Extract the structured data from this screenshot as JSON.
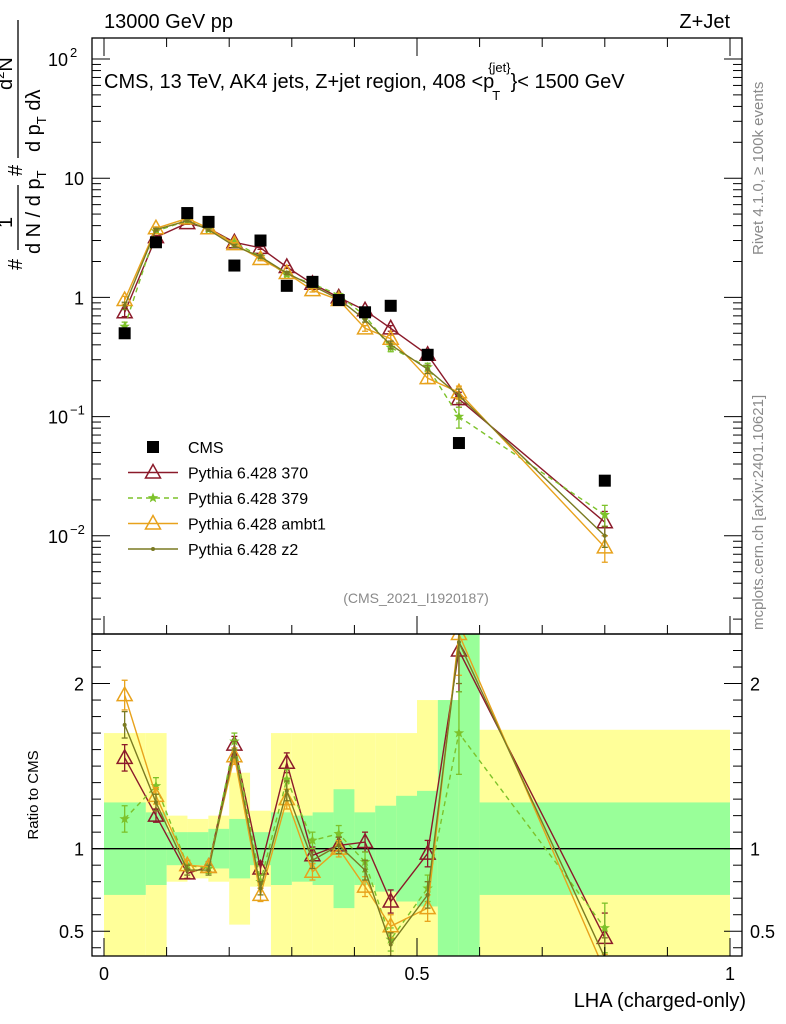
{
  "header": {
    "left": "13000 GeV pp",
    "right": "Z+Jet",
    "subtitle": "CMS, 13 TeV, AK4 jets, Z+jet region, 408 <p",
    "subtitle_sup": "{jet}",
    "subtitle_sub": "T",
    "subtitle_end": "}< 1500 GeV"
  },
  "ylabel_main": {
    "num1": "1",
    "den1": "d N / d p",
    "den1_sub": "T",
    "num2": "d",
    "num2_sup": "2",
    "num2_end": "N",
    "den2": "d p",
    "den2_sub": "T",
    "den2_end": " dλ",
    "hash": "#"
  },
  "side": {
    "rivet": "Rivet 4.1.0, ≥ 100k events",
    "mcplots": "mcplots.cern.ch [arXiv:2401.10621]"
  },
  "analysis_id": "(CMS_2021_I1920187)",
  "ratio_label": "Ratio to CMS",
  "xlabel": "LHA (charged-only)",
  "colors": {
    "cms": "#000000",
    "p370": "#8b1a2a",
    "p379": "#7dc22a",
    "ambt1": "#e8a21c",
    "z2": "#7a7a22",
    "band_inner": "#99ff99",
    "band_outer": "#ffff99"
  },
  "chart_data": {
    "type": "scatter",
    "title": "CMS, 13 TeV, AK4 jets, Z+jet region, 408 <p_T^{jet}< 1500 GeV",
    "xlabel": "LHA (charged-only)",
    "xlim": [
      0,
      1
    ],
    "ylim_main": [
      0.0015,
      150
    ],
    "yscale_main": "log",
    "ylim_ratio": [
      0.35,
      2.3
    ],
    "x_ticks": [
      "0",
      "0.5",
      "1"
    ],
    "x_tick_values": [
      0,
      0.5,
      1
    ],
    "y_ticks_main": [
      {
        "value": 0.01,
        "label": "10",
        "sup": "−2"
      },
      {
        "value": 0.1,
        "label": "10",
        "sup": "−1"
      },
      {
        "value": 1,
        "label": "1",
        "sup": ""
      },
      {
        "value": 10,
        "label": "10",
        "sup": ""
      },
      {
        "value": 100,
        "label": "10",
        "sup": "2"
      }
    ],
    "y_ticks_ratio": [
      {
        "value": 0.5,
        "label": "0.5"
      },
      {
        "value": 1,
        "label": "1"
      },
      {
        "value": 2,
        "label": "2"
      }
    ],
    "legend_position": "lower-left",
    "bins": [
      {
        "x0": 0.0,
        "x1": 0.0667,
        "inner": [
          0.72,
          1.28
        ],
        "outer": [
          0.3,
          1.7
        ]
      },
      {
        "x0": 0.0667,
        "x1": 0.1,
        "inner": [
          0.78,
          1.22
        ],
        "outer": [
          0.3,
          1.7
        ]
      },
      {
        "x0": 0.1,
        "x1": 0.1333,
        "inner": [
          0.9,
          1.1
        ],
        "outer": [
          0.8,
          1.2
        ]
      },
      {
        "x0": 0.1333,
        "x1": 0.1667,
        "inner": [
          0.9,
          1.1
        ],
        "outer": [
          0.82,
          1.18
        ]
      },
      {
        "x0": 0.1667,
        "x1": 0.2,
        "inner": [
          0.88,
          1.12
        ],
        "outer": [
          0.8,
          1.2
        ]
      },
      {
        "x0": 0.2,
        "x1": 0.2333,
        "inner": [
          0.82,
          1.18
        ],
        "outer": [
          0.54,
          1.46
        ]
      },
      {
        "x0": 0.2333,
        "x1": 0.2667,
        "inner": [
          0.9,
          1.1
        ],
        "outer": [
          0.77,
          1.23
        ]
      },
      {
        "x0": 0.2667,
        "x1": 0.3,
        "inner": [
          0.78,
          1.22
        ],
        "outer": [
          0.3,
          1.7
        ]
      },
      {
        "x0": 0.3,
        "x1": 0.3333,
        "inner": [
          0.8,
          1.2
        ],
        "outer": [
          0.3,
          1.7
        ]
      },
      {
        "x0": 0.3333,
        "x1": 0.3667,
        "inner": [
          0.78,
          1.22
        ],
        "outer": [
          0.3,
          1.7
        ]
      },
      {
        "x0": 0.3667,
        "x1": 0.4,
        "inner": [
          0.64,
          1.36
        ],
        "outer": [
          0.3,
          1.7
        ]
      },
      {
        "x0": 0.4,
        "x1": 0.4333,
        "inner": [
          0.78,
          1.22
        ],
        "outer": [
          0.3,
          1.7
        ]
      },
      {
        "x0": 0.4333,
        "x1": 0.4667,
        "inner": [
          0.74,
          1.26
        ],
        "outer": [
          0.3,
          1.7
        ]
      },
      {
        "x0": 0.4667,
        "x1": 0.5,
        "inner": [
          0.68,
          1.32
        ],
        "outer": [
          0.3,
          1.7
        ]
      },
      {
        "x0": 0.5,
        "x1": 0.5333,
        "inner": [
          0.65,
          1.35
        ],
        "outer": [
          0.3,
          1.9
        ]
      },
      {
        "x0": 0.5333,
        "x1": 0.5667,
        "inner": [
          0.3,
          1.9
        ],
        "outer": [
          0.3,
          1.9
        ]
      },
      {
        "x0": 0.5667,
        "x1": 0.6,
        "inner": [
          0.3,
          2.4
        ],
        "outer": [
          0.3,
          2.4
        ]
      },
      {
        "x0": 0.6,
        "x1": 1.0,
        "inner": [
          0.72,
          1.28
        ],
        "outer": [
          0.3,
          1.72
        ]
      }
    ],
    "series": [
      {
        "name": "CMS",
        "key": "cms",
        "marker": "square",
        "line": "none",
        "x": [
          0.033,
          0.083,
          0.133,
          0.167,
          0.2083,
          0.25,
          0.292,
          0.333,
          0.375,
          0.417,
          0.458,
          0.517,
          0.567,
          0.8
        ],
        "y": [
          0.5,
          2.9,
          5.1,
          4.3,
          1.85,
          3.0,
          1.25,
          1.35,
          0.95,
          0.75,
          0.85,
          0.33,
          0.06,
          0.029
        ],
        "ratio": [
          1,
          1,
          1,
          1,
          1,
          1,
          1,
          1,
          1,
          1,
          1,
          1,
          1,
          1
        ]
      },
      {
        "name": "Pythia 6.428 370",
        "key": "p370",
        "marker": "triangle-open",
        "line": "solid",
        "x": [
          0.033,
          0.083,
          0.133,
          0.167,
          0.2083,
          0.25,
          0.292,
          0.333,
          0.375,
          0.417,
          0.458,
          0.517,
          0.567,
          0.8
        ],
        "y": [
          0.75,
          3.2,
          4.2,
          3.8,
          2.9,
          2.6,
          1.8,
          1.3,
          1.0,
          0.78,
          0.55,
          0.33,
          0.14,
          0.013
        ],
        "yerr": [
          0.06,
          0.1,
          0.1,
          0.1,
          0.08,
          0.07,
          0.05,
          0.04,
          0.03,
          0.03,
          0.03,
          0.02,
          0.02,
          0.003
        ],
        "ratio": [
          1.55,
          1.2,
          0.85,
          0.89,
          1.63,
          0.88,
          1.52,
          0.96,
          1.02,
          1.04,
          0.68,
          0.97,
          2.2,
          0.46
        ],
        "ratio_err": [
          0.08,
          0.04,
          0.03,
          0.03,
          0.05,
          0.04,
          0.06,
          0.05,
          0.05,
          0.06,
          0.07,
          0.08,
          0.25,
          0.15
        ]
      },
      {
        "name": "Pythia 6.428 379",
        "key": "p379",
        "marker": "star",
        "line": "dashed",
        "x": [
          0.033,
          0.083,
          0.133,
          0.167,
          0.2083,
          0.25,
          0.292,
          0.333,
          0.375,
          0.417,
          0.458,
          0.517,
          0.567,
          0.8
        ],
        "y": [
          0.57,
          3.6,
          4.4,
          3.7,
          2.9,
          2.2,
          1.55,
          1.3,
          1.05,
          0.7,
          0.38,
          0.26,
          0.1,
          0.015
        ],
        "yerr": [
          0.05,
          0.1,
          0.1,
          0.1,
          0.08,
          0.07,
          0.05,
          0.04,
          0.03,
          0.03,
          0.03,
          0.02,
          0.02,
          0.003
        ],
        "ratio": [
          1.18,
          1.38,
          0.9,
          0.88,
          1.65,
          0.8,
          1.42,
          1.05,
          1.09,
          0.92,
          0.45,
          0.76,
          1.7,
          0.52
        ],
        "ratio_err": [
          0.08,
          0.05,
          0.03,
          0.03,
          0.05,
          0.04,
          0.06,
          0.05,
          0.05,
          0.06,
          0.07,
          0.08,
          0.25,
          0.15
        ]
      },
      {
        "name": "Pythia 6.428 ambt1",
        "key": "ambt1",
        "marker": "triangle-open",
        "line": "solid",
        "x": [
          0.033,
          0.083,
          0.133,
          0.167,
          0.2083,
          0.25,
          0.292,
          0.333,
          0.375,
          0.417,
          0.458,
          0.517,
          0.567,
          0.8
        ],
        "y": [
          0.95,
          3.8,
          4.6,
          3.8,
          2.8,
          2.1,
          1.6,
          1.15,
          0.95,
          0.55,
          0.45,
          0.21,
          0.16,
          0.008
        ],
        "yerr": [
          0.07,
          0.1,
          0.1,
          0.1,
          0.08,
          0.07,
          0.05,
          0.04,
          0.03,
          0.03,
          0.03,
          0.02,
          0.02,
          0.002
        ],
        "ratio": [
          1.93,
          1.32,
          0.9,
          0.89,
          1.56,
          0.72,
          1.3,
          0.86,
          1.0,
          0.77,
          0.53,
          0.64,
          2.3,
          0.26
        ],
        "ratio_err": [
          0.09,
          0.05,
          0.03,
          0.03,
          0.05,
          0.04,
          0.06,
          0.05,
          0.05,
          0.06,
          0.07,
          0.08,
          0.25,
          0.1
        ]
      },
      {
        "name": "Pythia 6.428 z2",
        "key": "z2",
        "marker": "dot",
        "line": "solid",
        "x": [
          0.033,
          0.083,
          0.133,
          0.167,
          0.2083,
          0.25,
          0.292,
          0.333,
          0.375,
          0.417,
          0.458,
          0.517,
          0.567,
          0.8
        ],
        "y": [
          0.85,
          3.7,
          4.4,
          3.7,
          2.7,
          2.2,
          1.6,
          1.25,
          0.97,
          0.65,
          0.4,
          0.25,
          0.15,
          0.01
        ],
        "yerr": [
          0.06,
          0.1,
          0.1,
          0.1,
          0.08,
          0.07,
          0.05,
          0.04,
          0.03,
          0.03,
          0.03,
          0.02,
          0.02,
          0.002
        ],
        "ratio": [
          1.75,
          1.28,
          0.87,
          0.87,
          1.6,
          0.76,
          1.35,
          0.93,
          1.02,
          0.87,
          0.42,
          0.72,
          2.25,
          0.34
        ],
        "ratio_err": [
          0.08,
          0.05,
          0.03,
          0.03,
          0.05,
          0.04,
          0.06,
          0.05,
          0.05,
          0.06,
          0.07,
          0.08,
          0.25,
          0.12
        ]
      }
    ]
  }
}
